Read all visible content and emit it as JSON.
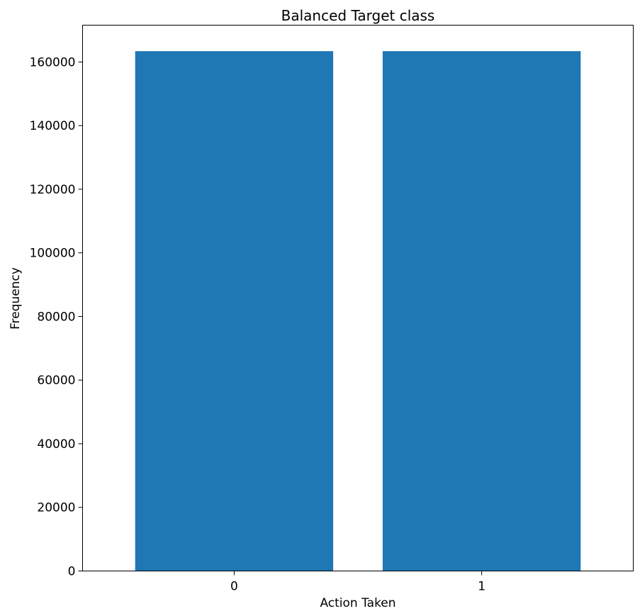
{
  "chart_data": {
    "type": "bar",
    "title": "Balanced Target class",
    "xlabel": "Action Taken",
    "ylabel": "Frequency",
    "categories": [
      "0",
      "1"
    ],
    "values": [
      163400,
      163400
    ],
    "ylim": [
      0,
      171570
    ],
    "yticks": [
      0,
      20000,
      40000,
      60000,
      80000,
      100000,
      120000,
      140000,
      160000
    ],
    "ytick_labels": [
      "0",
      "20000",
      "40000",
      "60000",
      "80000",
      "100000",
      "120000",
      "140000",
      "160000"
    ],
    "bar_color": "#1f77b4",
    "grid": false
  }
}
